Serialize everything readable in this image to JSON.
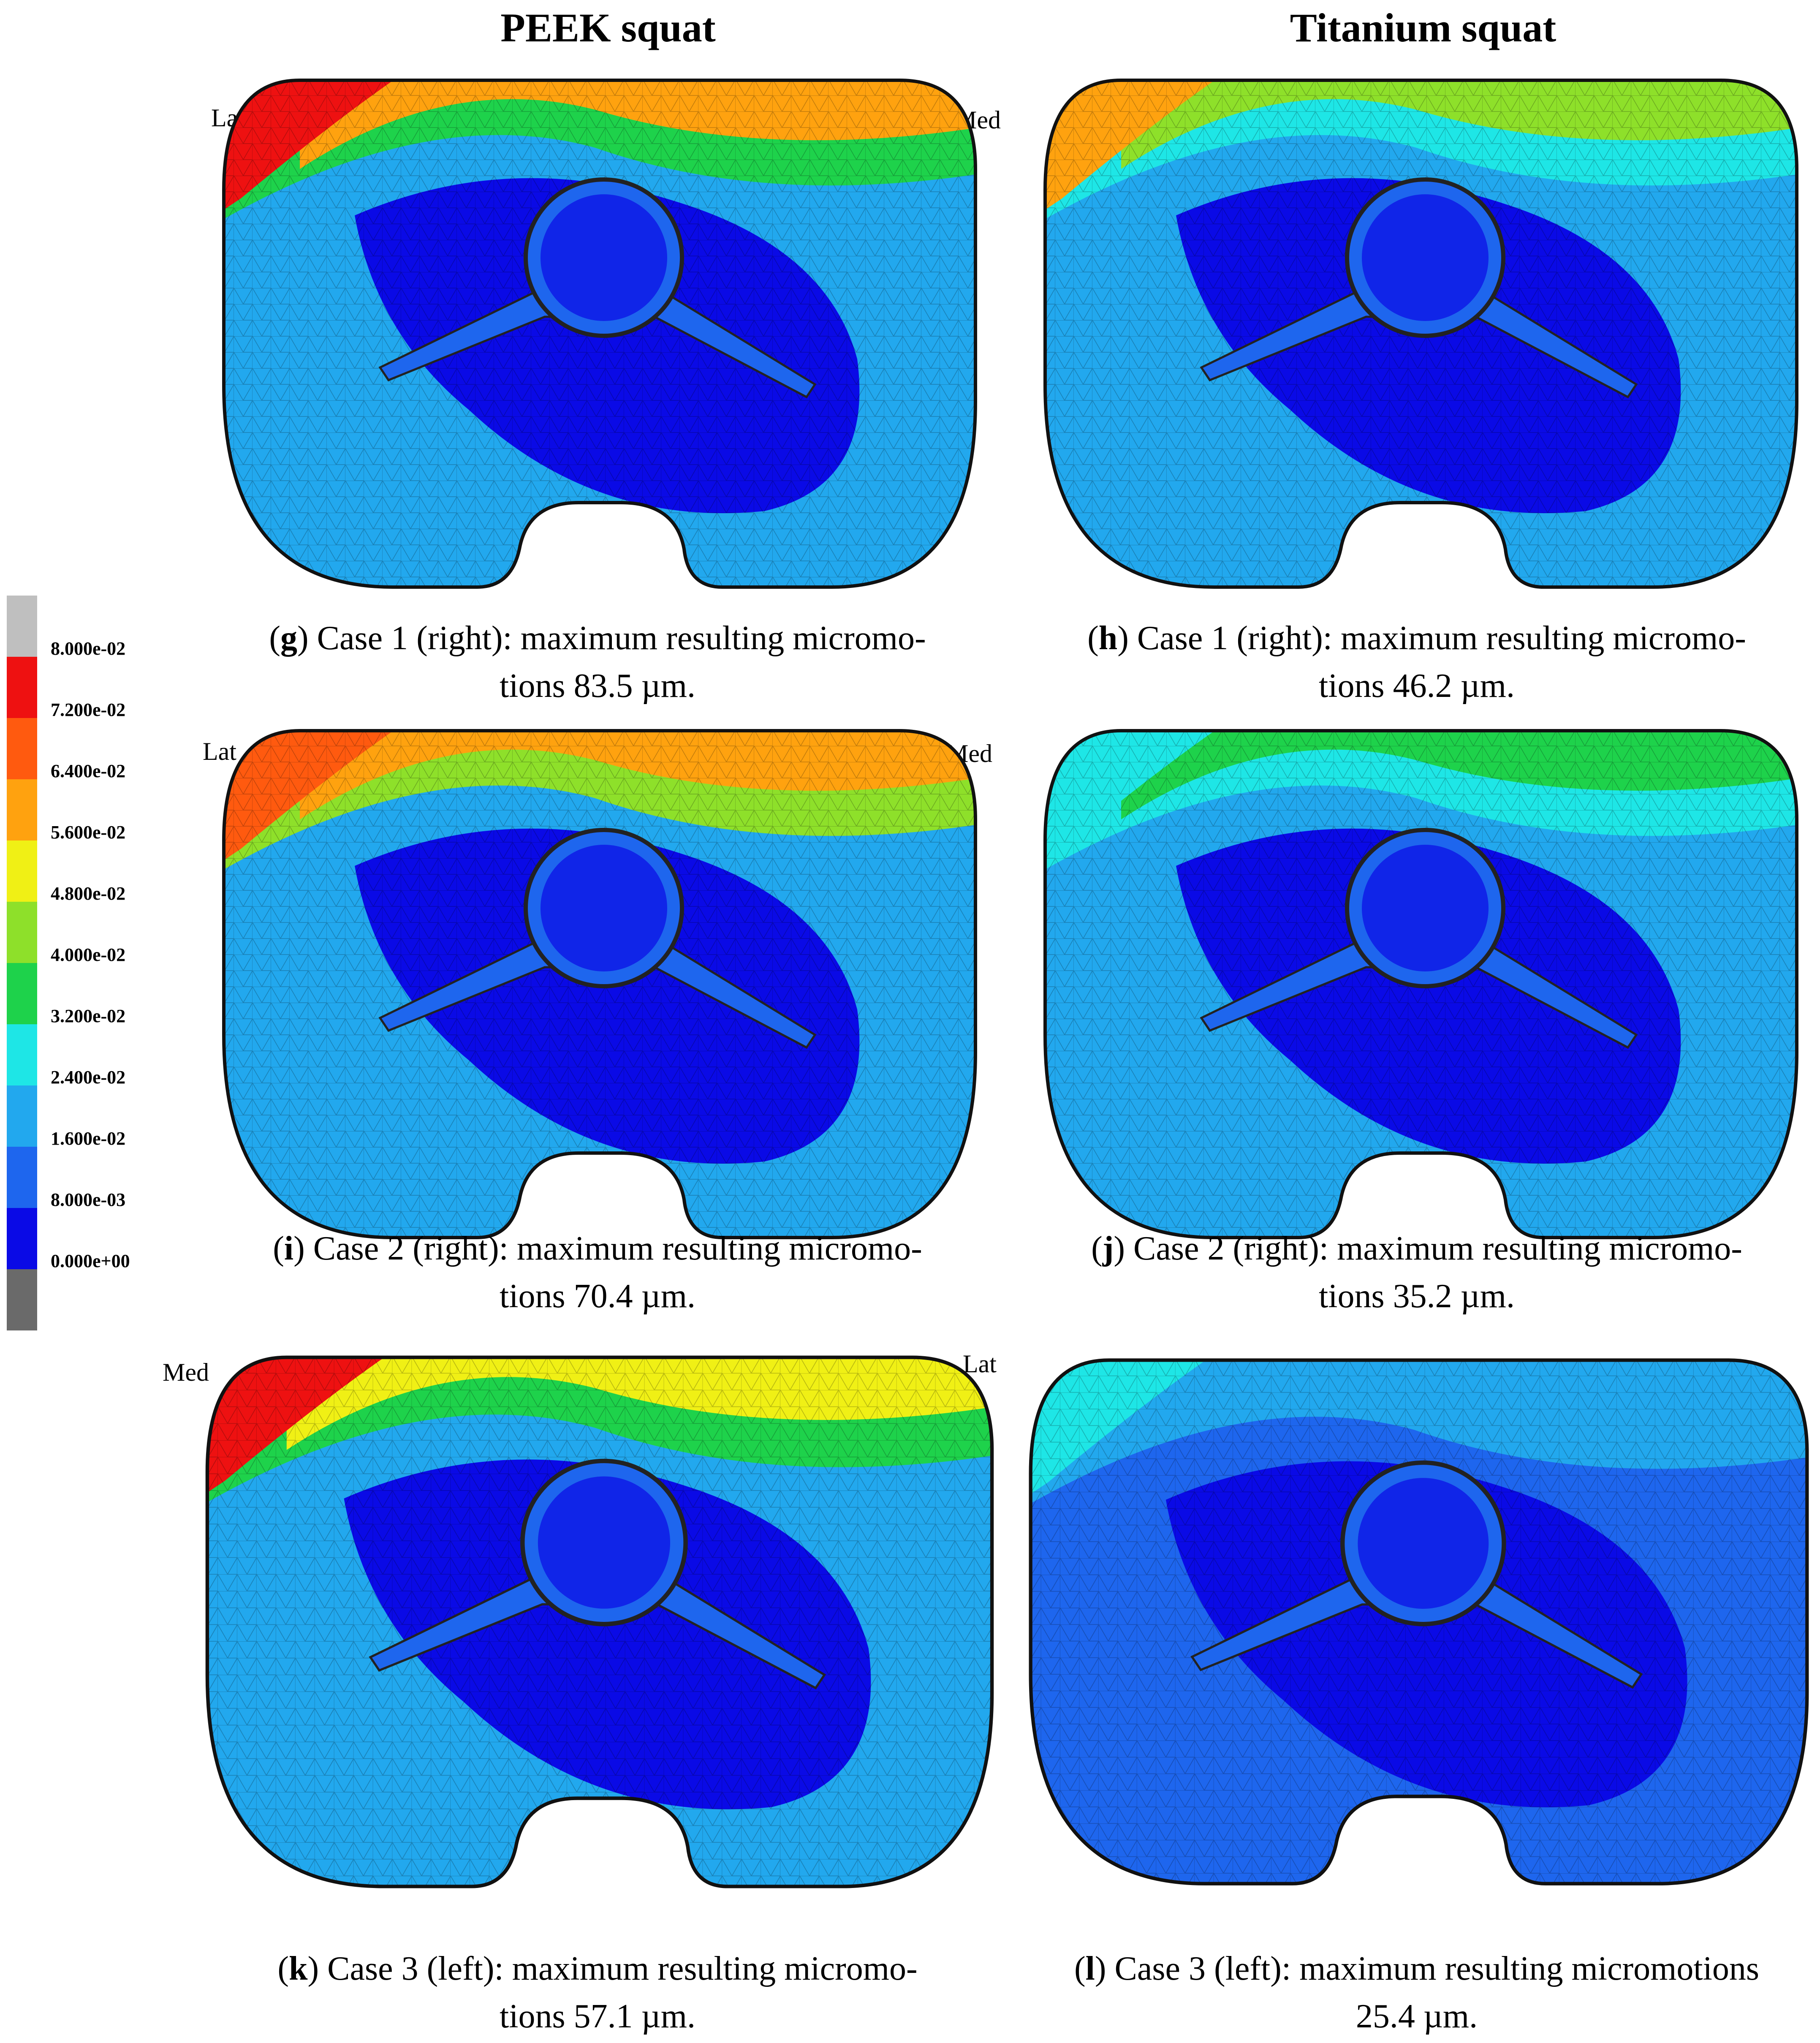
{
  "column_titles": [
    "PEEK squat",
    "Titanium squat"
  ],
  "legend": {
    "labels": [
      "8.000e-02",
      "7.200e-02",
      "6.400e-02",
      "5.600e-02",
      "4.800e-02",
      "4.000e-02",
      "3.200e-02",
      "2.400e-02",
      "1.600e-02",
      "8.000e-03",
      "0.000e+00"
    ],
    "colors": [
      "#bfbfbf",
      "#ee1111",
      "#ff5a0f",
      "#ffa20f",
      "#f0f015",
      "#8ee02a",
      "#1ed24b",
      "#1ee6e6",
      "#22a8ee",
      "#1e66ee",
      "#0a0ae6",
      "#6a6a6a"
    ]
  },
  "panels": [
    {
      "id": "g",
      "left_label": "Lat",
      "right_label": "Med",
      "colors": {
        "base": "#22a8ee",
        "top": "#ffa20f",
        "edge": "#ee1111",
        "inner": "#0a0ae6",
        "mid": "#1ed24b"
      },
      "caption_letter": "g",
      "caption_line1": " Case 1 (right): maximum resulting micromo-",
      "caption_line2": "tions 83.5 µm."
    },
    {
      "id": "h",
      "left_label": "",
      "right_label": "",
      "colors": {
        "base": "#22a8ee",
        "top": "#8ee02a",
        "edge": "#ffa20f",
        "inner": "#0a0ae6",
        "mid": "#1ee6e6"
      },
      "caption_letter": "h",
      "caption_line1": " Case 1 (right): maximum resulting micromo-",
      "caption_line2": "tions 46.2 µm."
    },
    {
      "id": "i",
      "left_label": "Lat",
      "right_label": "Med",
      "colors": {
        "base": "#22a8ee",
        "top": "#ffa20f",
        "edge": "#ff5a0f",
        "inner": "#0a0ae6",
        "mid": "#8ee02a"
      },
      "caption_letter": "i",
      "caption_line1": " Case 2 (right): maximum resulting micromo-",
      "caption_line2": "tions 70.4 µm."
    },
    {
      "id": "j",
      "left_label": "",
      "right_label": "",
      "colors": {
        "base": "#22a8ee",
        "top": "#1ed24b",
        "edge": "#1ee6e6",
        "inner": "#0a0ae6",
        "mid": "#1ee6e6"
      },
      "caption_letter": "j",
      "caption_line1": " Case 2 (right): maximum resulting micromo-",
      "caption_line2": "tions 35.2 µm."
    },
    {
      "id": "k",
      "left_label": "Med",
      "right_label": "Lat",
      "colors": {
        "base": "#22a8ee",
        "top": "#f0f015",
        "edge": "#ee1111",
        "inner": "#0a0ae6",
        "mid": "#1ed24b"
      },
      "caption_letter": "k",
      "caption_line1": " Case 3 (left): maximum resulting micromo-",
      "caption_line2": "tions 57.1 µm."
    },
    {
      "id": "l",
      "left_label": "",
      "right_label": "",
      "colors": {
        "base": "#1e66ee",
        "top": "#22a8ee",
        "edge": "#1ee6e6",
        "inner": "#0a0ae6",
        "mid": "#22a8ee"
      },
      "caption_letter": "l",
      "caption_line1": " Case 3 (left): maximum resulting micromotions",
      "caption_line2": "25.4 µm."
    }
  ]
}
